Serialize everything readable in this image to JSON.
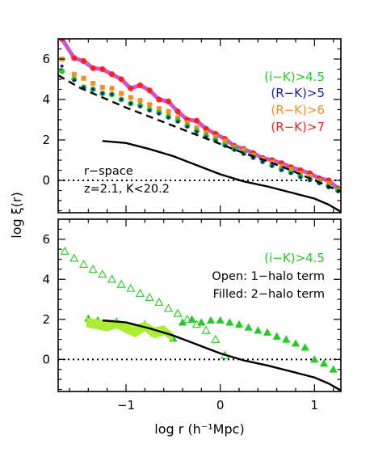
{
  "chart_data": [
    {
      "panel": "top",
      "type": "line",
      "xlim": [
        -1.72,
        1.28
      ],
      "ylim": [
        -1.6,
        7.0
      ],
      "xticks": [
        -1,
        0,
        1
      ],
      "yticks": [
        0,
        2,
        4,
        6
      ],
      "ylabel": "log ξ(r)",
      "legend": [
        {
          "label": "(i−K)>4.5",
          "color": "#22cc22"
        },
        {
          "label": "(R−K)>5",
          "color": "#1a1aaa"
        },
        {
          "label": "(R−K)>6",
          "color": "#ff8c1a"
        },
        {
          "label": "(R−K)>7",
          "color": "#ff2020"
        }
      ],
      "annotations": [
        "r−space",
        "z=2.1, K<20.2"
      ],
      "series": [
        {
          "style": "magenta-curve",
          "color": "#cc55cc",
          "x": [
            -1.68,
            -1.62,
            -1.55,
            -1.45,
            -1.35,
            -1.25,
            -1.15,
            -1.05,
            -0.95,
            -0.85,
            -0.75,
            -0.65,
            -0.55,
            -0.45,
            -0.35,
            -0.25,
            -0.15,
            -0.05,
            0.05,
            0.15,
            0.25,
            0.35,
            0.45,
            0.55,
            0.65,
            0.75,
            0.85,
            0.95,
            1.05,
            1.15,
            1.25
          ],
          "y": [
            7.0,
            6.55,
            6.05,
            5.9,
            5.55,
            5.5,
            5.25,
            5.0,
            4.55,
            4.7,
            4.45,
            4.0,
            3.9,
            3.4,
            3.0,
            2.95,
            2.55,
            2.3,
            2.05,
            1.7,
            1.55,
            1.35,
            1.1,
            1.0,
            0.85,
            0.65,
            0.5,
            0.35,
            0.1,
            0.0,
            -0.4
          ]
        },
        {
          "style": "red-points",
          "color": "#ff2020",
          "x": [
            -1.68,
            -1.55,
            -1.45,
            -1.35,
            -1.25,
            -1.15,
            -1.05,
            -0.95,
            -0.85,
            -0.75,
            -0.65,
            -0.55,
            -0.45,
            -0.35,
            -0.25,
            -0.15,
            -0.05,
            0.05,
            0.15,
            0.25,
            0.35,
            0.45,
            0.55,
            0.65,
            0.75,
            0.85,
            0.95,
            1.05,
            1.15,
            1.25
          ],
          "y": [
            7.0,
            6.05,
            5.9,
            5.55,
            5.5,
            5.25,
            5.0,
            4.55,
            4.7,
            4.45,
            4.0,
            3.9,
            3.4,
            3.0,
            2.95,
            2.55,
            2.3,
            2.05,
            1.7,
            1.55,
            1.35,
            1.1,
            1.0,
            0.85,
            0.65,
            0.5,
            0.35,
            0.1,
            0.0,
            -0.4
          ]
        },
        {
          "style": "orange-squares",
          "color": "#ff8c1a",
          "x": [
            -1.68,
            -1.55,
            -1.45,
            -1.35,
            -1.25,
            -1.15,
            -1.05,
            -0.95,
            -0.85,
            -0.75,
            -0.65,
            -0.55,
            -0.45,
            -0.35,
            -0.25,
            -0.15,
            -0.05,
            0.05,
            0.15,
            0.25,
            0.35,
            0.45,
            0.55,
            0.65,
            0.75,
            0.85,
            0.95,
            1.05,
            1.15,
            1.25
          ],
          "y": [
            6.0,
            5.25,
            5.05,
            4.8,
            4.6,
            4.55,
            4.3,
            4.1,
            3.95,
            3.75,
            3.55,
            3.4,
            3.1,
            2.85,
            2.6,
            2.35,
            2.15,
            1.95,
            1.65,
            1.5,
            1.25,
            1.05,
            0.9,
            0.7,
            0.55,
            0.35,
            0.2,
            0.0,
            -0.15,
            -0.45
          ]
        },
        {
          "style": "green-points",
          "color": "#22cc22",
          "x": [
            -1.68,
            -1.55,
            -1.45,
            -1.35,
            -1.25,
            -1.15,
            -1.05,
            -0.95,
            -0.85,
            -0.75,
            -0.65,
            -0.55,
            -0.45,
            -0.35,
            -0.25,
            -0.15,
            -0.05,
            0.05,
            0.15,
            0.25,
            0.35,
            0.45,
            0.55,
            0.65,
            0.75,
            0.85,
            0.95,
            1.05,
            1.15,
            1.25
          ],
          "y": [
            5.4,
            5.0,
            4.6,
            4.5,
            4.3,
            4.25,
            4.0,
            3.8,
            3.7,
            3.5,
            3.35,
            3.15,
            2.95,
            2.7,
            2.45,
            2.2,
            2.0,
            1.75,
            1.55,
            1.35,
            1.15,
            0.95,
            0.75,
            0.55,
            0.4,
            0.2,
            0.05,
            -0.1,
            -0.3,
            -0.5
          ]
        },
        {
          "style": "blue-points",
          "color": "#1a1aaa",
          "x": [
            -1.68,
            -1.55,
            -1.45,
            -1.35,
            -1.25,
            -1.15,
            -1.05,
            -0.95,
            -0.85,
            -0.75,
            -0.65,
            -0.55,
            -0.45,
            -0.35,
            -0.25,
            -0.15,
            -0.05,
            0.05,
            0.15,
            0.25,
            0.35,
            0.45,
            0.55,
            0.65,
            0.75,
            0.85,
            0.95,
            1.05,
            1.15,
            1.25
          ],
          "y": [
            5.65,
            4.95,
            4.6,
            4.5,
            4.3,
            4.25,
            4.0,
            3.8,
            3.65,
            3.45,
            3.3,
            3.1,
            2.9,
            2.65,
            2.4,
            2.15,
            1.95,
            1.7,
            1.5,
            1.3,
            1.1,
            0.9,
            0.7,
            0.5,
            0.35,
            0.15,
            0.0,
            -0.15,
            -0.35,
            -0.55
          ]
        },
        {
          "style": "black-dashed",
          "color": "#000000",
          "x": [
            -1.72,
            -1.5,
            -1.25,
            -1.0,
            -0.75,
            -0.5,
            -0.25,
            0.0,
            0.25,
            0.5,
            0.75,
            1.0,
            1.28
          ],
          "y": [
            5.2,
            4.6,
            4.1,
            3.6,
            3.15,
            2.7,
            2.25,
            1.8,
            1.35,
            0.95,
            0.5,
            0.0,
            -0.55
          ]
        },
        {
          "style": "black-solid",
          "color": "#000000",
          "x": [
            -1.25,
            -1.0,
            -0.75,
            -0.5,
            -0.25,
            0.0,
            0.25,
            0.5,
            0.75,
            1.0,
            1.15,
            1.28
          ],
          "y": [
            1.95,
            1.85,
            1.55,
            1.2,
            0.75,
            0.3,
            -0.05,
            -0.3,
            -0.6,
            -0.9,
            -1.2,
            -1.55
          ]
        }
      ]
    },
    {
      "panel": "bottom",
      "type": "scatter",
      "xlim": [
        -1.72,
        1.28
      ],
      "ylim": [
        -1.6,
        7.0
      ],
      "xticks": [
        -1,
        0,
        1
      ],
      "yticks": [
        0,
        2,
        4,
        6
      ],
      "xlabel": "log r (h⁻¹Mpc)",
      "legend": [
        {
          "label": "(i−K)>4.5",
          "color": "#22cc22"
        }
      ],
      "annotations": [
        "Open: 1−halo term",
        "Filled: 2−halo term"
      ],
      "series": [
        {
          "style": "open-triangles",
          "color": "#22cc22",
          "x": [
            -1.65,
            -1.55,
            -1.45,
            -1.35,
            -1.25,
            -1.15,
            -1.05,
            -0.95,
            -0.85,
            -0.75,
            -0.65,
            -0.55,
            -0.45,
            -0.35,
            -0.25,
            -0.15,
            -0.05,
            0.05
          ],
          "y": [
            5.4,
            5.05,
            4.75,
            4.5,
            4.25,
            4.0,
            3.75,
            3.55,
            3.3,
            3.1,
            2.85,
            2.55,
            2.3,
            2.0,
            1.75,
            1.45,
            1.0,
            0.2
          ]
        },
        {
          "style": "filled-triangles",
          "color": "#22cc22",
          "x": [
            -1.4,
            -1.3,
            -1.2,
            -1.1,
            -1.0,
            -0.9,
            -0.8,
            -0.7,
            -0.6,
            -0.5,
            -0.4,
            -0.3,
            -0.2,
            -0.1,
            0.0,
            0.1,
            0.2,
            0.3,
            0.4,
            0.5,
            0.6,
            0.7,
            0.8,
            0.9,
            1.0,
            1.1,
            1.2
          ],
          "y": [
            2.05,
            1.95,
            1.7,
            1.9,
            1.6,
            1.4,
            1.75,
            1.3,
            1.5,
            1.05,
            1.85,
            2.0,
            1.85,
            1.95,
            1.95,
            1.85,
            1.75,
            1.6,
            1.45,
            1.35,
            1.15,
            1.0,
            0.8,
            0.6,
            0.0,
            -0.2,
            -0.5
          ]
        },
        {
          "style": "green-band",
          "color": "#aaee33",
          "x": [
            -1.42,
            -1.3,
            -1.2,
            -1.1,
            -1.0,
            -0.9,
            -0.8,
            -0.7,
            -0.6,
            -0.5
          ],
          "y_high": [
            2.1,
            2.0,
            1.95,
            2.0,
            1.8,
            1.7,
            1.9,
            1.6,
            1.7,
            1.3
          ],
          "y_low": [
            1.6,
            1.5,
            1.4,
            1.55,
            1.3,
            1.1,
            1.4,
            1.05,
            1.2,
            0.9
          ]
        },
        {
          "style": "black-solid",
          "color": "#000000",
          "x": [
            -1.25,
            -1.0,
            -0.75,
            -0.5,
            -0.25,
            0.0,
            0.25,
            0.5,
            0.75,
            1.0,
            1.15,
            1.28
          ],
          "y": [
            1.95,
            1.85,
            1.55,
            1.2,
            0.75,
            0.3,
            -0.05,
            -0.3,
            -0.6,
            -0.9,
            -1.2,
            -1.55
          ]
        }
      ]
    }
  ]
}
